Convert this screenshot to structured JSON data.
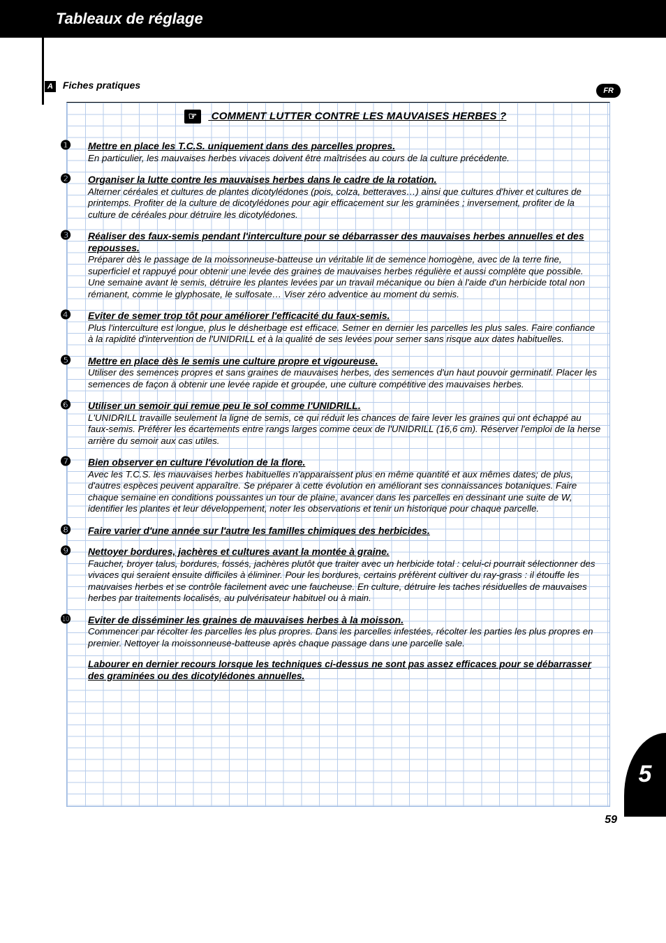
{
  "colors": {
    "grid_line": "#b7cceb",
    "black": "#000000",
    "white": "#ffffff"
  },
  "header": {
    "title": "Tableaux de réglage"
  },
  "lang_badge": "FR",
  "section": {
    "letter": "A",
    "label": "Fiches pratiques"
  },
  "grid": {
    "hand_glyph": "☞",
    "title": "COMMENT LUTTER CONTRE LES MAUVAISES HERBES ?",
    "items": [
      {
        "num": "❶",
        "head": "Mettre en place les T.C.S. uniquement dans des parcelles propres.",
        "body": "En particulier, les mauvaises herbes vivaces doivent être maîtrisées au cours de la culture précédente."
      },
      {
        "num": "❷",
        "head": "Organiser la lutte contre les mauvaises herbes dans le cadre de la rotation.",
        "body": "Alterner céréales et cultures de plantes dicotylédones (pois, colza, betteraves…) ainsi que cultures d'hiver et cultures de printemps. Profiter de la culture de dicotylédones pour agir efficacement sur les graminées ; inversement, profiter de la culture de céréales pour détruire les dicotylédones."
      },
      {
        "num": "❸",
        "head": "Réaliser des faux-semis pendant l'interculture pour se débarrasser des mauvaises herbes annuelles et des repousses.",
        "body": "Préparer dès  le passage de la moissonneuse-batteuse un véritable lit de semence homogène, avec de la terre fine, superficiel et rappuyé pour obtenir une levée des graines de mauvaises herbes régulière et aussi complète que possible. Une semaine avant le semis, détruire les plantes levées par un travail mécanique ou bien à l'aide d'un herbicide total non rémanent, comme le glyphosate, le sulfosate… Viser zéro adventice au  moment du semis."
      },
      {
        "num": "❹",
        "head": "Eviter de semer trop tôt pour améliorer l'efficacité du faux-semis.",
        "body": "Plus l'interculture est longue, plus le désherbage est efficace. Semer en dernier les parcelles les plus sales. Faire confiance à la rapidité d'intervention de l'UNIDRILL et à la qualité de ses levées pour semer sans risque aux dates habituelles."
      },
      {
        "num": "❺",
        "head": "Mettre en place dès le semis une culture propre et vigoureuse.",
        "body": "Utiliser des semences propres et sans graines de mauvaises herbes, des semences d'un haut pouvoir germinatif. Placer les semences de façon à obtenir une levée rapide et groupée, une culture compétitive des mauvaises herbes."
      },
      {
        "num": "❻",
        "head": "Utiliser un semoir qui remue peu le sol comme l'UNIDRILL.",
        "body": "L'UNIDRILL travaille seulement la ligne de semis, ce qui réduit les chances de faire lever les graines qui ont échappé au faux-semis. Préférer les écartements entre rangs larges comme ceux de l'UNIDRILL (16,6 cm). Réserver l'emploi de la herse arrière du semoir aux cas utiles."
      },
      {
        "num": "❼",
        "head": "Bien observer en culture l'évolution de la flore.",
        "body": "Avec les T.C.S. les mauvaises herbes habituelles n'apparaissent plus en même quantité et aux mêmes dates; de plus, d'autres espèces peuvent apparaître. Se préparer à cette évolution en améliorant ses connaissances botaniques. Faire chaque semaine en conditions poussantes un tour de plaine, avancer dans les parcelles en dessinant une suite de W, identifier les plantes et leur développement, noter les observations et tenir un historique pour chaque parcelle."
      },
      {
        "num": "❽",
        "head": "Faire varier d'une année sur l'autre les familles chimiques des herbicides.",
        "body": ""
      },
      {
        "num": "❾",
        "head": "Nettoyer bordures, jachères et cultures avant la montée à graine.",
        "body": "Faucher, broyer talus, bordures, fossés, jachères plutôt que traiter avec un herbicide total : celui-ci pourrait sélectionner des vivaces qui seraient ensuite difficiles à éliminer. Pour les bordures, certains préfèrent cultiver du ray-grass : il étouffe les mauvaises herbes et se contrôle facilement avec une faucheuse. En culture,  détruire les taches résiduelles de mauvaises herbes par traitements localisés, au pulvérisateur habituel ou à main."
      },
      {
        "num": "❿",
        "head": "Eviter de disséminer les graines de mauvaises herbes à la moisson.",
        "body": "Commencer par récolter les parcelles les plus propres. Dans les parcelles infestées, récolter les parties les plus propres en premier. Nettoyer la moissonneuse-batteuse après chaque passage dans une parcelle sale."
      }
    ],
    "final_note": "Labourer en dernier recours lorsque les techniques ci-dessus ne sont pas assez efficaces pour se débarrasser des graminées ou des dicotylédones annuelles."
  },
  "tab_number": "5",
  "page_number": "59"
}
